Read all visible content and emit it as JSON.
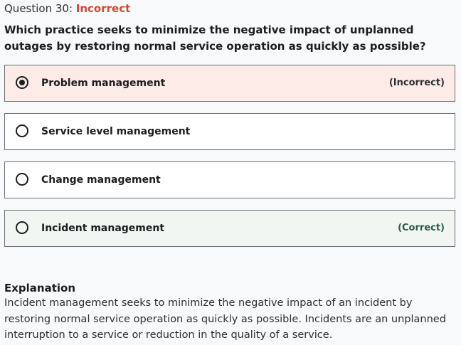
{
  "question": {
    "prefix": "Question 30: ",
    "status": "Incorrect",
    "text": "Which practice seeks to minimize the negative impact of unplanned outages by restoring normal service operation as quickly as possible?"
  },
  "options": [
    {
      "label": "Problem management",
      "tag": "(Incorrect)",
      "selected": true
    },
    {
      "label": "Service level management",
      "tag": "",
      "selected": false
    },
    {
      "label": "Change management",
      "tag": "",
      "selected": false
    },
    {
      "label": "Incident management",
      "tag": "(Correct)",
      "selected": false
    }
  ],
  "explanation": {
    "title": "Explanation",
    "body": "Incident management seeks to minimize the negative impact of an incident by restoring normal service operation as quickly as possible. Incidents are an unplanned interruption to a service or reduction in the quality of a service."
  },
  "colors": {
    "incorrect_text": "#d2492f",
    "incorrect_bg": "#fdebe8",
    "correct_bg": "#f1f6f3",
    "correct_text": "#2a5a4b"
  }
}
